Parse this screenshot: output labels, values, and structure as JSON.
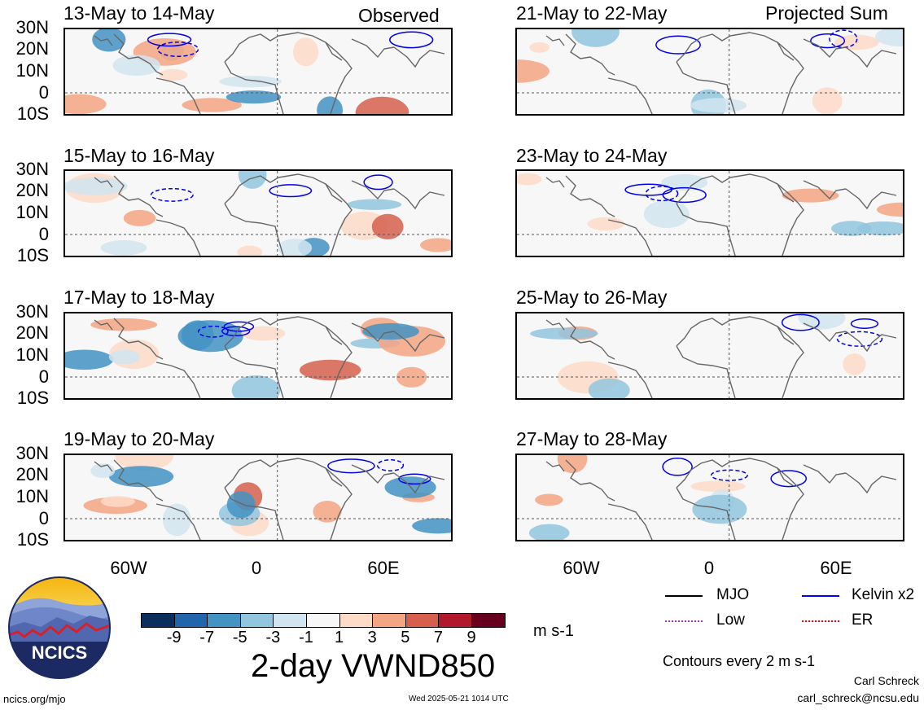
{
  "header": {
    "left": "Observed",
    "right": "Projected Sum"
  },
  "panels": [
    {
      "title": "13-May to 14-May",
      "column": "observed"
    },
    {
      "title": "15-May to 16-May",
      "column": "observed"
    },
    {
      "title": "17-May to 18-May",
      "column": "observed"
    },
    {
      "title": "19-May to 20-May",
      "column": "observed"
    },
    {
      "title": "21-May to 22-May",
      "column": "projected"
    },
    {
      "title": "23-May to 24-May",
      "column": "projected"
    },
    {
      "title": "25-May to 26-May",
      "column": "projected"
    },
    {
      "title": "27-May to 28-May",
      "column": "projected"
    }
  ],
  "lat_labels": [
    "30N",
    "20N",
    "10N",
    "0",
    "10S"
  ],
  "lon_labels": [
    "60W",
    "0",
    "60E"
  ],
  "colorbar": {
    "labels": [
      "-9",
      "-7",
      "-5",
      "-3",
      "-1",
      "1",
      "3",
      "5",
      "7",
      "9"
    ],
    "colors": [
      "#0b2e5c",
      "#2166ac",
      "#4393c3",
      "#92c5de",
      "#d1e5f0",
      "#f7f7f7",
      "#fddbc7",
      "#f4a582",
      "#d6604d",
      "#b2182b",
      "#67001f"
    ],
    "units": "m s-1"
  },
  "title": "2-day VWND850",
  "legend": {
    "items": [
      {
        "label": "MJO",
        "color": "#000000"
      },
      {
        "label": "Kelvin x2",
        "color": "#0000ee"
      },
      {
        "label": "Low",
        "color": "#9a30e0"
      },
      {
        "label": "ER",
        "color": "#ee0000"
      }
    ],
    "contours_note": "Contours every 2 m s-1"
  },
  "footer": {
    "author": "Carl Schreck",
    "email": "carl_schreck@ncsu.edu",
    "site": "ncics.org/mjo",
    "timestamp": "Wed 2025-05-21 1014 UTC",
    "logo_text": "NCICS"
  }
}
